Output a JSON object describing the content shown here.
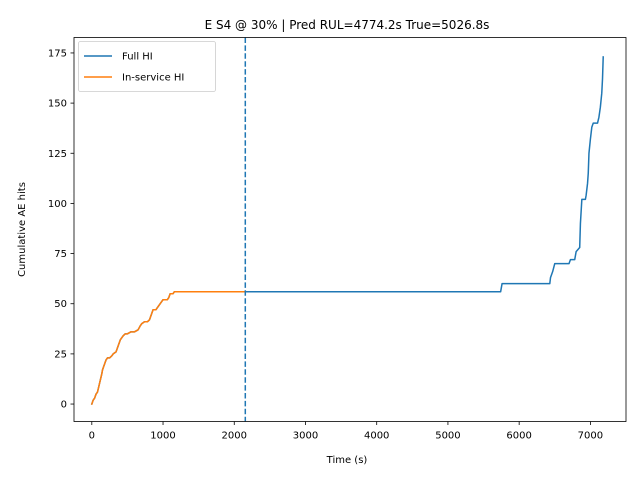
{
  "chart_data": {
    "type": "line",
    "title": "E S4 @ 30% | Pred RUL=4774.2s  True=5026.8s",
    "xlabel": "Time (s)",
    "ylabel": "Cumulative AE hits",
    "xlim": [
      -250,
      7500
    ],
    "ylim": [
      -8.7,
      182.7
    ],
    "xticks": [
      0,
      1000,
      2000,
      3000,
      4000,
      5000,
      6000,
      7000
    ],
    "yticks": [
      0,
      25,
      50,
      75,
      100,
      125,
      150,
      175
    ],
    "grid": false,
    "legend_position": "upper-left",
    "vline": {
      "x": 2155,
      "style": "dashed",
      "color": "#1f77b4"
    },
    "series": [
      {
        "name": "Full HI",
        "color": "#1f77b4",
        "x": [
          0,
          20,
          40,
          60,
          80,
          100,
          120,
          140,
          150,
          160,
          170,
          180,
          200,
          220,
          250,
          280,
          300,
          340,
          360,
          380,
          400,
          420,
          440,
          470,
          500,
          550,
          600,
          650,
          680,
          700,
          740,
          780,
          810,
          820,
          840,
          860,
          900,
          920,
          940,
          960,
          1000,
          1060,
          1080,
          1100,
          1140,
          1160,
          1200,
          1400,
          1800,
          2155,
          3000,
          4000,
          5000,
          5740,
          5760,
          6000,
          6300,
          6430,
          6440,
          6470,
          6500,
          6700,
          6720,
          6780,
          6800,
          6850,
          6860,
          6880,
          6900,
          6910,
          6930,
          6940,
          6950,
          6960,
          6970,
          6980,
          7000,
          7020,
          7040,
          7080,
          7100,
          7120,
          7140,
          7160,
          7170,
          7180
        ],
        "values": [
          0,
          2,
          3,
          5,
          6,
          9,
          12,
          15,
          17,
          18,
          19,
          20,
          22,
          23,
          23,
          24,
          25,
          26,
          28,
          30,
          32,
          33,
          34,
          35,
          35,
          36,
          36,
          37,
          39,
          40,
          41,
          41,
          42,
          43,
          45,
          47,
          47,
          48,
          49,
          50,
          52,
          52,
          53,
          55,
          55,
          56,
          56,
          56,
          56,
          56,
          56,
          56,
          56,
          56,
          60,
          60,
          60,
          60,
          63,
          66,
          70,
          70,
          72,
          72,
          76,
          78,
          90,
          102,
          102,
          102,
          102,
          104,
          107,
          110,
          115,
          125,
          132,
          138,
          140,
          140,
          140,
          143,
          148,
          155,
          162,
          173
        ]
      },
      {
        "name": "In-service HI",
        "color": "#ff7f0e",
        "x": [
          0,
          20,
          40,
          60,
          80,
          100,
          120,
          140,
          150,
          160,
          170,
          180,
          200,
          220,
          250,
          280,
          300,
          340,
          360,
          380,
          400,
          420,
          440,
          470,
          500,
          550,
          600,
          650,
          680,
          700,
          740,
          780,
          810,
          820,
          840,
          860,
          900,
          920,
          940,
          960,
          1000,
          1060,
          1080,
          1100,
          1140,
          1160,
          1200,
          1400,
          1800,
          2155
        ],
        "values": [
          0,
          2,
          3,
          5,
          6,
          9,
          12,
          15,
          17,
          18,
          19,
          20,
          22,
          23,
          23,
          24,
          25,
          26,
          28,
          30,
          32,
          33,
          34,
          35,
          35,
          36,
          36,
          37,
          39,
          40,
          41,
          41,
          42,
          43,
          45,
          47,
          47,
          48,
          49,
          50,
          52,
          52,
          53,
          55,
          55,
          56,
          56,
          56,
          56,
          56
        ]
      }
    ]
  }
}
